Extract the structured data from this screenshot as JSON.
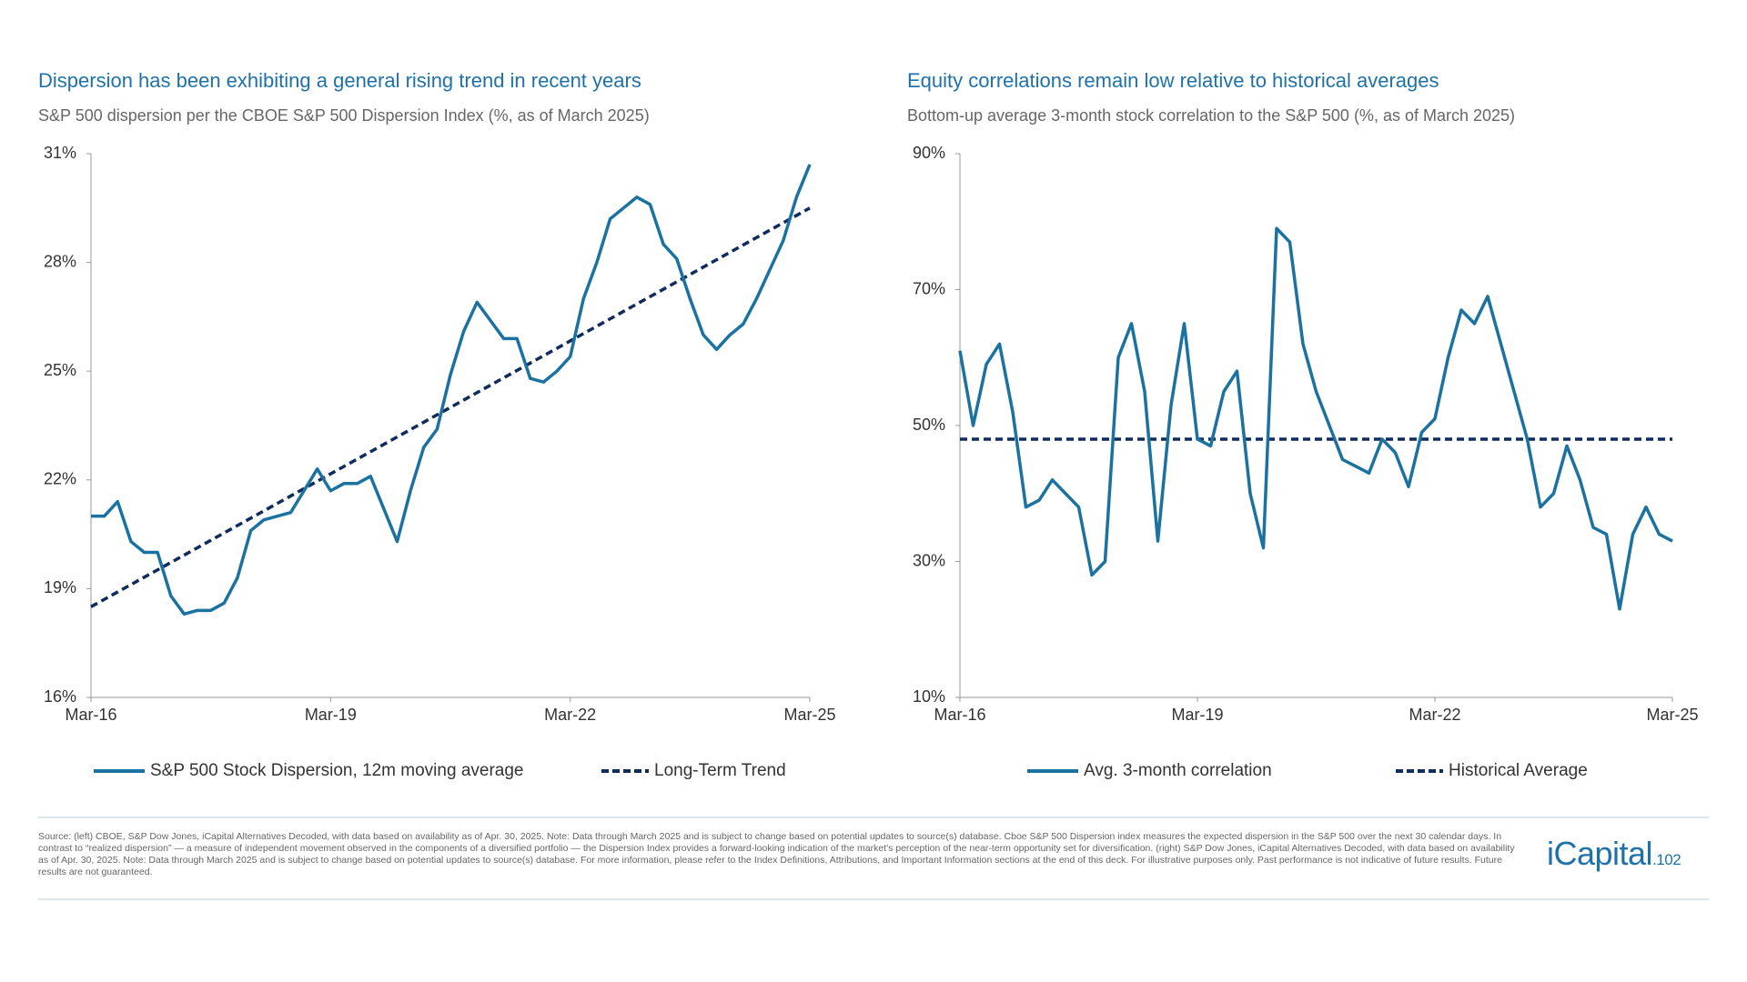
{
  "chart_data": [
    {
      "type": "line",
      "title": "Dispersion has been exhibiting a general rising trend in recent years",
      "subtitle": "S&P 500 dispersion per the CBOE S&P 500 Dispersion Index (%, as of March 2025)",
      "categories": [
        "Mar-16",
        null,
        null,
        null,
        null,
        null,
        null,
        null,
        null,
        null,
        null,
        null,
        null,
        null,
        null,
        null,
        null,
        null,
        "Mar-19",
        null,
        null,
        null,
        null,
        null,
        null,
        null,
        null,
        null,
        null,
        null,
        null,
        null,
        null,
        null,
        null,
        null,
        "Mar-22",
        null,
        null,
        null,
        null,
        null,
        null,
        null,
        null,
        null,
        null,
        null,
        null,
        null,
        null,
        null,
        null,
        null,
        "Mar-25"
      ],
      "series": [
        {
          "name": "S&P 500 Stock Dispersion, 12m moving average",
          "color": "#1b72a0",
          "values": [
            21.0,
            21.0,
            21.4,
            20.3,
            20.0,
            20.0,
            18.8,
            18.3,
            18.4,
            18.4,
            18.6,
            19.3,
            20.6,
            20.9,
            21.0,
            21.1,
            21.7,
            22.3,
            21.7,
            21.9,
            21.9,
            22.1,
            21.2,
            20.3,
            21.7,
            22.9,
            23.4,
            24.9,
            26.1,
            26.9,
            26.4,
            25.9,
            25.9,
            24.8,
            24.7,
            25.0,
            25.4,
            27.0,
            28.0,
            29.2,
            29.5,
            29.8,
            29.6,
            28.5,
            28.1,
            27.0,
            26.0,
            25.6,
            26.0,
            26.3,
            27.0,
            27.8,
            28.6,
            29.8,
            30.7
          ]
        }
      ],
      "trend_line": {
        "name": "Long-Term Trend",
        "color": "#0f2c5c",
        "start": 18.5,
        "end": 29.5
      },
      "ylim": [
        16,
        31
      ],
      "yticks": [
        {
          "value": 16,
          "label": "16%"
        },
        {
          "value": 19,
          "label": "19%"
        },
        {
          "value": 22,
          "label": "22%"
        },
        {
          "value": 25,
          "label": "25%"
        },
        {
          "value": 28,
          "label": "28%"
        },
        {
          "value": 31,
          "label": "31%"
        }
      ]
    },
    {
      "type": "line",
      "title": "Equity correlations remain low relative to historical averages",
      "subtitle": "Bottom-up average 3-month stock correlation to the S&P 500 (%, as of March 2025)",
      "categories": [
        "Mar-16",
        null,
        null,
        null,
        null,
        null,
        null,
        null,
        null,
        null,
        null,
        null,
        null,
        null,
        null,
        null,
        null,
        null,
        "Mar-19",
        null,
        null,
        null,
        null,
        null,
        null,
        null,
        null,
        null,
        null,
        null,
        null,
        null,
        null,
        null,
        null,
        null,
        "Mar-22",
        null,
        null,
        null,
        null,
        null,
        null,
        null,
        null,
        null,
        null,
        null,
        null,
        null,
        null,
        null,
        null,
        null,
        "Mar-25"
      ],
      "series": [
        {
          "name": "Avg. 3-month correlation",
          "color": "#1b72a0",
          "values": [
            61,
            50,
            59,
            62,
            52,
            38,
            39,
            42,
            40,
            38,
            28,
            30,
            60,
            65,
            55,
            33,
            53,
            65,
            48,
            47,
            55,
            58,
            40,
            32,
            79,
            77,
            62,
            55,
            50,
            45,
            44,
            43,
            48,
            46,
            41,
            49,
            51,
            60,
            67,
            65,
            69,
            62,
            55,
            48,
            38,
            40,
            47,
            42,
            35,
            34,
            23,
            34,
            38,
            34,
            33
          ]
        }
      ],
      "reference_line": {
        "name": "Historical Average",
        "color": "#0f2c5c",
        "value": 48
      },
      "ylim": [
        10,
        90
      ],
      "yticks": [
        {
          "value": 10,
          "label": "10%"
        },
        {
          "value": 30,
          "label": "30%"
        },
        {
          "value": 50,
          "label": "50%"
        },
        {
          "value": 70,
          "label": "70%"
        },
        {
          "value": 90,
          "label": "90%"
        }
      ]
    }
  ],
  "footer": {
    "source": "Source: (left) CBOE, S&P Dow Jones, iCapital Alternatives Decoded, with data based on availability as of Apr. 30, 2025. Note: Data through March 2025 and is subject to change based on potential updates to source(s) database. Cboe S&P 500 Dispersion index measures the expected dispersion in the S&P 500 over the next 30 calendar days. In contrast to “realized dispersion” — a measure of independent movement observed in the components of a diversified portfolio — the Dispersion Index provides a forward-looking indication of the market's perception of the near-term opportunity set for diversification. (right) S&P Dow Jones, iCapital Alternatives Decoded, with data based on availability as of Apr. 30, 2025. Note: Data through March 2025 and is subject to change based on potential updates to source(s) database. For more information, please refer to the Index Definitions, Attributions, and Important Information sections at the end of this deck. For illustrative purposes only. Past performance is not indicative of future results. Future results are not guaranteed.",
    "logo": "iCapital",
    "logo_suffix": ".102"
  }
}
